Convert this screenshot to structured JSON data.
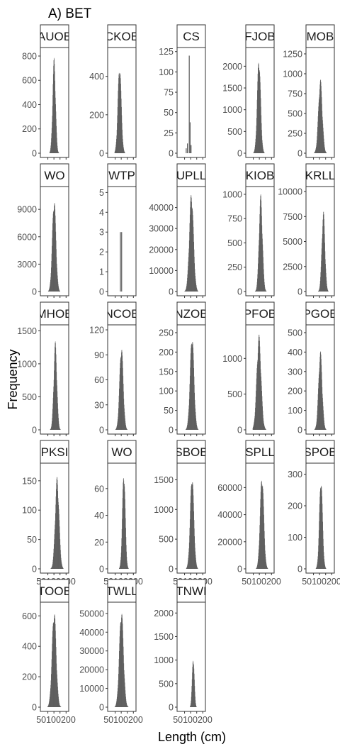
{
  "chart_data": {
    "type": "bar",
    "title": "A) BET",
    "xlabel": "Length (cm)",
    "ylabel": "Frequency",
    "grid": false,
    "xlim": [
      0,
      210
    ],
    "x_tick_labels": [
      "50",
      "100",
      "150",
      "200"
    ],
    "x_tick_text": "50100200",
    "panels": [
      {
        "name": "AUOBS",
        "label": "AUOB",
        "ylim": [
          0,
          870
        ],
        "yticks": [
          0,
          200,
          400,
          600,
          800
        ],
        "peak": 790,
        "mode": "normal",
        "center": 100,
        "spread": 12,
        "xmin": 55,
        "xmax": 145
      },
      {
        "name": "CKOBS",
        "label": "CKOB",
        "ylim": [
          0,
          550
        ],
        "yticks": [
          0,
          200,
          400
        ],
        "peak": 470,
        "mode": "normal",
        "center": 85,
        "spread": 14,
        "xmin": 45,
        "xmax": 140
      },
      {
        "name": "CS",
        "label": "CS",
        "ylim": [
          0,
          130
        ],
        "yticks": [
          0,
          25,
          50,
          75,
          100,
          125
        ],
        "peak": 120,
        "mode": "spikes",
        "spikes": [
          [
            60,
            6
          ],
          [
            70,
            12
          ],
          [
            85,
            120
          ],
          [
            92,
            38
          ],
          [
            100,
            10
          ]
        ],
        "xmin": 50,
        "xmax": 110
      },
      {
        "name": "FJOBS",
        "label": "FJOB",
        "ylim": [
          0,
          2430
        ],
        "yticks": [
          0,
          500,
          1000,
          1500,
          2000
        ],
        "peak": 2250,
        "mode": "normal",
        "center": 95,
        "spread": 14,
        "xmin": 50,
        "xmax": 160
      },
      {
        "name": "MOBS",
        "label": "MOB",
        "ylim": [
          0,
          1330
        ],
        "yticks": [
          0,
          250,
          500,
          750,
          1000,
          1250
        ],
        "peak": 940,
        "mode": "normal",
        "center": 105,
        "spread": 16,
        "xmin": 50,
        "xmax": 175
      },
      {
        "name": "WO",
        "label": "WO",
        "ylim": [
          0,
          11500
        ],
        "yticks": [
          0,
          3000,
          6000,
          9000
        ],
        "peak": 10400,
        "mode": "normal",
        "center": 100,
        "spread": 15,
        "xmin": 50,
        "xmax": 160
      },
      {
        "name": "WTP",
        "label": "WTP",
        "ylim": [
          0,
          5.3
        ],
        "yticks": [
          0,
          1,
          2,
          3,
          4,
          5
        ],
        "peak": 3,
        "mode": "spikes",
        "spikes": [
          [
            90,
            3
          ],
          [
            100,
            3
          ]
        ],
        "xmin": 85,
        "xmax": 105
      },
      {
        "name": "UPLL",
        "label": "UPLL",
        "ylim": [
          0,
          50000
        ],
        "yticks": [
          0,
          10000,
          20000,
          30000,
          40000
        ],
        "peak": 48000,
        "mode": "normal",
        "center": 105,
        "spread": 17,
        "xmin": 45,
        "xmax": 185
      },
      {
        "name": "KIOBS",
        "label": "KIOB",
        "ylim": [
          0,
          1080
        ],
        "yticks": [
          0,
          250,
          500,
          750,
          1000
        ],
        "peak": 1000,
        "mode": "normal",
        "center": 110,
        "spread": 14,
        "xmin": 50,
        "xmax": 190
      },
      {
        "name": "KRLL",
        "label": "KRLL",
        "ylim": [
          0,
          10500
        ],
        "yticks": [
          0,
          2500,
          5000,
          7500,
          10000
        ],
        "peak": 8100,
        "mode": "normal",
        "center": 130,
        "spread": 13,
        "xmin": 40,
        "xmax": 195
      },
      {
        "name": "MHOBS",
        "label": "MHOB",
        "ylim": [
          0,
          1590
        ],
        "yticks": [
          0,
          500,
          1000,
          1500
        ],
        "peak": 1340,
        "mode": "normal",
        "center": 110,
        "spread": 13,
        "xmin": 50,
        "xmax": 170
      },
      {
        "name": "NCOBS",
        "label": "NCOB",
        "ylim": [
          0,
          126
        ],
        "yticks": [
          0,
          30,
          60,
          90,
          120
        ],
        "peak": 103,
        "mode": "normal",
        "center": 100,
        "spread": 15,
        "xmin": 50,
        "xmax": 160
      },
      {
        "name": "NZOBS",
        "label": "NZOB",
        "ylim": [
          0,
          270
        ],
        "yticks": [
          0,
          50,
          100,
          150,
          200,
          250
        ],
        "peak": 250,
        "mode": "normal",
        "center": 110,
        "spread": 16,
        "xmin": 55,
        "xmax": 175
      },
      {
        "name": "PFOBS",
        "label": "PFOB",
        "ylim": [
          0,
          1470
        ],
        "yticks": [
          0,
          500,
          1000
        ],
        "peak": 1340,
        "mode": "normal",
        "center": 95,
        "spread": 18,
        "xmin": 45,
        "xmax": 180
      },
      {
        "name": "PGOBS",
        "label": "PGOB",
        "ylim": [
          0,
          540
        ],
        "yticks": [
          0,
          100,
          200,
          300,
          400,
          500
        ],
        "peak": 410,
        "mode": "normal",
        "center": 105,
        "spread": 15,
        "xmin": 50,
        "xmax": 170
      },
      {
        "name": "PKSL",
        "label": "PKSI",
        "ylim": [
          0,
          180
        ],
        "yticks": [
          0,
          50,
          100,
          150
        ],
        "peak": 158,
        "mode": "normal",
        "center": 125,
        "spread": 16,
        "xmin": 55,
        "xmax": 175
      },
      {
        "name": "WOBS",
        "label": "WO",
        "ylim": [
          0,
          79
        ],
        "yticks": [
          0,
          20,
          40,
          60
        ],
        "peak": 75,
        "mode": "normal",
        "center": 120,
        "spread": 12,
        "xmin": 60,
        "xmax": 170
      },
      {
        "name": "SBOBS",
        "label": "SBOB",
        "ylim": [
          0,
          1780
        ],
        "yticks": [
          0,
          500,
          1000,
          1500
        ],
        "peak": 1620,
        "mode": "normal",
        "center": 110,
        "spread": 15,
        "xmin": 55,
        "xmax": 175
      },
      {
        "name": "SPLL",
        "label": "SPLL",
        "ylim": [
          0,
          78000
        ],
        "yticks": [
          0,
          20000,
          40000,
          60000
        ],
        "peak": 71000,
        "mode": "normal",
        "center": 120,
        "spread": 15,
        "xmin": 50,
        "xmax": 190
      },
      {
        "name": "SPOBS",
        "label": "SPOB",
        "ylim": [
          0,
          335
        ],
        "yticks": [
          0,
          100,
          200,
          300
        ],
        "peak": 295,
        "mode": "normal",
        "center": 110,
        "spread": 13,
        "xmin": 55,
        "xmax": 175
      },
      {
        "name": "TOOBS",
        "label": "TOOB",
        "ylim": [
          0,
          690
        ],
        "yticks": [
          0,
          200,
          400,
          600
        ],
        "peak": 650,
        "mode": "normal",
        "center": 100,
        "spread": 17,
        "xmin": 40,
        "xmax": 170
      },
      {
        "name": "TWLL",
        "label": "TWLL",
        "ylim": [
          0,
          56000
        ],
        "yticks": [
          0,
          10000,
          20000,
          30000,
          40000,
          50000
        ],
        "peak": 53000,
        "mode": "normal",
        "center": 100,
        "spread": 17,
        "xmin": 40,
        "xmax": 180
      },
      {
        "name": "TNWS",
        "label": "TNWI",
        "ylim": [
          0,
          2230
        ],
        "yticks": [
          0,
          500,
          1000,
          1500,
          2000
        ],
        "peak": 1100,
        "mode": "normal",
        "center": 120,
        "spread": 9,
        "xmin": 90,
        "xmax": 155
      }
    ]
  }
}
